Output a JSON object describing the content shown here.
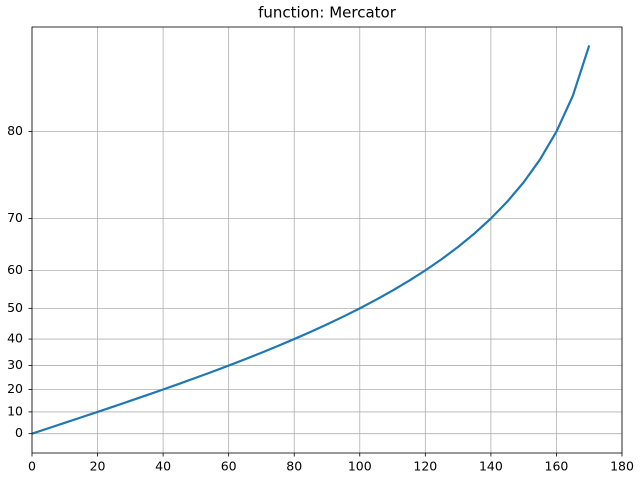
{
  "chart_data": {
    "type": "line",
    "title": "function: Mercator",
    "yscale": "mercator",
    "x": [
      0,
      5,
      10,
      15,
      20,
      25,
      30,
      35,
      40,
      45,
      50,
      55,
      60,
      65,
      70,
      75,
      80,
      85,
      90,
      95,
      100,
      105,
      110,
      115,
      120,
      125,
      130,
      135,
      140,
      145,
      150,
      155,
      160,
      165,
      170
    ],
    "values": [
      0,
      2.5,
      5,
      7.5,
      10,
      12.5,
      15,
      17.5,
      20,
      22.5,
      25,
      27.5,
      30,
      32.5,
      35,
      37.5,
      40,
      42.5,
      45,
      47.5,
      50,
      52.5,
      55,
      57.5,
      60,
      62.5,
      65,
      67.5,
      70,
      72.5,
      75,
      77.5,
      80,
      82.5,
      85
    ],
    "color": "#1f77b4",
    "xlim": [
      0,
      180
    ],
    "xticks": [
      0,
      20,
      40,
      60,
      80,
      100,
      120,
      140,
      160,
      180
    ],
    "ylim": [
      -8.9,
      85.69
    ],
    "yticks": [
      0,
      10,
      20,
      30,
      40,
      50,
      60,
      70,
      80
    ],
    "grid": true
  }
}
